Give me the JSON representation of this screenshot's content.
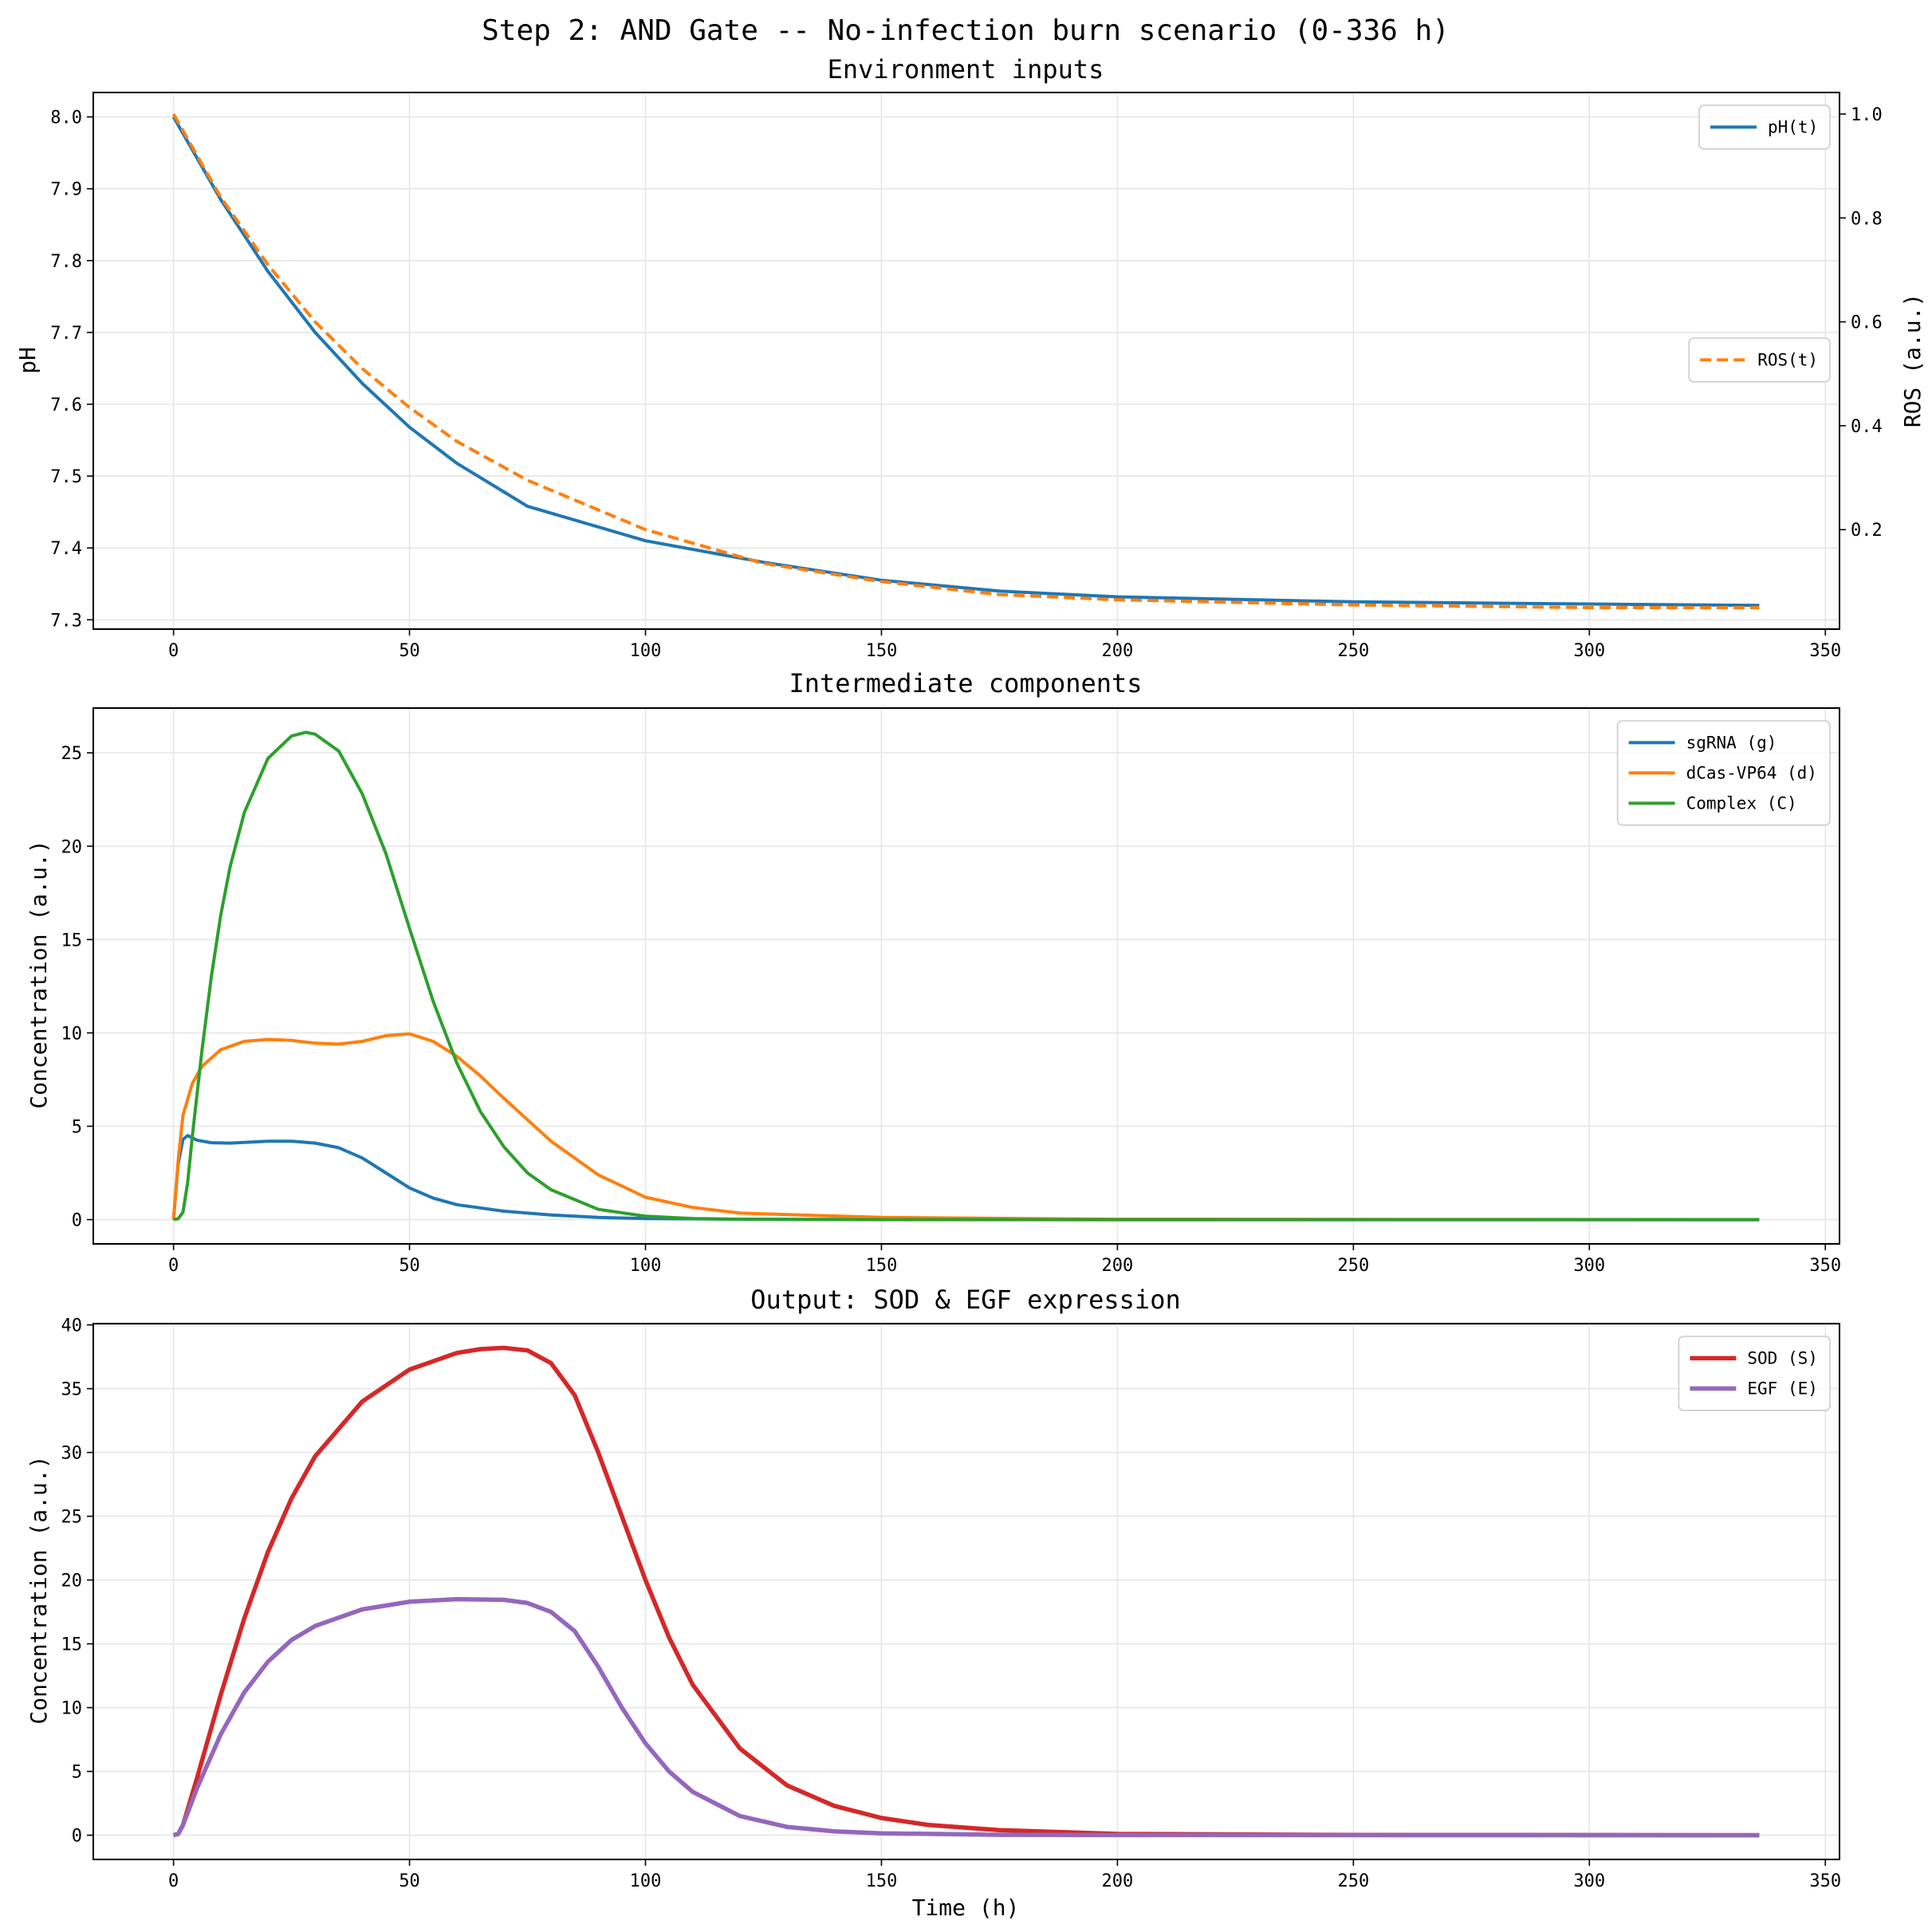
{
  "chart_data": [
    {
      "type": "line",
      "suptitle": "Step 2: AND Gate -- No-infection burn scenario (0-336 h)",
      "title": "Environment inputs",
      "xlabel": "",
      "ylabel": "pH",
      "y2label": "ROS (a.u.)",
      "xlim": [
        -17,
        353
      ],
      "ylim": [
        7.287,
        8.034
      ],
      "y2lim": [
        0.0085,
        1.0415
      ],
      "xticks": [
        0,
        50,
        100,
        150,
        200,
        250,
        300,
        350
      ],
      "yticks": [
        7.3,
        7.4,
        7.5,
        7.6,
        7.7,
        7.8,
        7.9,
        8.0
      ],
      "yticks_fmt": 1,
      "y2ticks": [
        0.2,
        0.4,
        0.6,
        0.8,
        1.0
      ],
      "grid": true,
      "series": [
        {
          "name": "pH(t)",
          "axis": "left",
          "color": "#1f77b4",
          "dash": "",
          "width": 4,
          "legend": "top-right",
          "x": [
            0,
            10,
            20,
            30,
            40,
            50,
            60,
            75,
            100,
            125,
            150,
            175,
            200,
            250,
            300,
            336
          ],
          "y": [
            8.0,
            7.885,
            7.785,
            7.7,
            7.629,
            7.568,
            7.518,
            7.458,
            7.41,
            7.38,
            7.355,
            7.34,
            7.332,
            7.325,
            7.322,
            7.32
          ]
        },
        {
          "name": "ROS(t)",
          "axis": "right",
          "color": "#ff7f0e",
          "dash": "14,7",
          "width": 4,
          "legend": "center-right",
          "x": [
            0,
            10,
            20,
            30,
            40,
            50,
            60,
            75,
            100,
            125,
            150,
            175,
            200,
            250,
            300,
            336
          ],
          "y": [
            1.0,
            0.84,
            0.71,
            0.6,
            0.51,
            0.435,
            0.37,
            0.295,
            0.2,
            0.135,
            0.1,
            0.075,
            0.065,
            0.055,
            0.05,
            0.05
          ]
        }
      ]
    },
    {
      "type": "line",
      "title": "Intermediate components",
      "xlabel": "",
      "ylabel": "Concentration (a.u.)",
      "xlim": [
        -17,
        353
      ],
      "ylim": [
        -1.3,
        27.4
      ],
      "xticks": [
        0,
        50,
        100,
        150,
        200,
        250,
        300,
        350
      ],
      "yticks": [
        0,
        5,
        10,
        15,
        20,
        25
      ],
      "yticks_fmt": 0,
      "grid": true,
      "legend": "top-right",
      "series": [
        {
          "name": "sgRNA (g)",
          "color": "#1f77b4",
          "width": 4,
          "x": [
            0,
            1,
            2,
            3,
            5,
            8,
            12,
            20,
            25,
            30,
            35,
            40,
            45,
            50,
            55,
            60,
            70,
            80,
            90,
            100,
            120,
            150,
            200,
            336
          ],
          "y": [
            0,
            3.0,
            4.3,
            4.5,
            4.25,
            4.12,
            4.1,
            4.2,
            4.2,
            4.1,
            3.85,
            3.3,
            2.5,
            1.7,
            1.15,
            0.8,
            0.45,
            0.25,
            0.12,
            0.06,
            0.02,
            0.01,
            0,
            0
          ]
        },
        {
          "name": "dCas-VP64 (d)",
          "color": "#ff7f0e",
          "width": 4,
          "x": [
            0,
            1,
            2,
            4,
            6,
            10,
            15,
            20,
            25,
            30,
            35,
            40,
            45,
            50,
            55,
            60,
            65,
            70,
            80,
            90,
            100,
            110,
            120,
            150,
            200,
            336
          ],
          "y": [
            0,
            3.2,
            5.6,
            7.3,
            8.2,
            9.1,
            9.55,
            9.65,
            9.6,
            9.45,
            9.4,
            9.55,
            9.85,
            9.95,
            9.55,
            8.75,
            7.7,
            6.5,
            4.2,
            2.4,
            1.2,
            0.65,
            0.35,
            0.12,
            0.02,
            0
          ]
        },
        {
          "name": "Complex (C)",
          "color": "#2ca02c",
          "width": 4,
          "x": [
            0,
            1,
            2,
            3,
            4,
            6,
            8,
            10,
            12,
            15,
            20,
            25,
            28,
            30,
            35,
            40,
            45,
            50,
            55,
            60,
            65,
            70,
            75,
            80,
            90,
            100,
            110,
            120,
            150,
            336
          ],
          "y": [
            0,
            0.05,
            0.4,
            2.0,
            4.5,
            9.0,
            13.0,
            16.3,
            18.9,
            21.8,
            24.7,
            25.9,
            26.1,
            26.0,
            25.1,
            22.8,
            19.6,
            15.6,
            11.7,
            8.4,
            5.8,
            3.9,
            2.5,
            1.6,
            0.55,
            0.18,
            0.06,
            0.02,
            0,
            0
          ]
        }
      ]
    },
    {
      "type": "line",
      "title": "Output: SOD & EGF expression",
      "xlabel": "Time (h)",
      "ylabel": "Concentration (a.u.)",
      "xlim": [
        -17,
        353
      ],
      "ylim": [
        -1.9,
        40.1
      ],
      "xticks": [
        0,
        50,
        100,
        150,
        200,
        250,
        300,
        350
      ],
      "yticks": [
        0,
        5,
        10,
        15,
        20,
        25,
        30,
        35,
        40
      ],
      "yticks_fmt": 0,
      "grid": true,
      "legend": "top-right",
      "series": [
        {
          "name": "SOD (S)",
          "color": "#d62728",
          "width": 5.5,
          "x": [
            0,
            1,
            2,
            5,
            10,
            15,
            20,
            25,
            30,
            40,
            50,
            60,
            65,
            70,
            75,
            80,
            85,
            90,
            95,
            100,
            105,
            110,
            120,
            130,
            140,
            150,
            160,
            175,
            200,
            250,
            336
          ],
          "y": [
            0,
            0.1,
            0.8,
            4.5,
            11.0,
            17.0,
            22.2,
            26.4,
            29.7,
            34.0,
            36.5,
            37.8,
            38.1,
            38.2,
            38.0,
            37.0,
            34.5,
            30.0,
            25.0,
            20.0,
            15.5,
            11.8,
            6.8,
            3.9,
            2.3,
            1.35,
            0.8,
            0.4,
            0.1,
            0.02,
            0
          ]
        },
        {
          "name": "EGF (E)",
          "color": "#9467bd",
          "width": 5.5,
          "x": [
            0,
            1,
            2,
            5,
            10,
            15,
            20,
            25,
            30,
            40,
            50,
            60,
            70,
            75,
            80,
            85,
            90,
            95,
            100,
            105,
            110,
            120,
            130,
            140,
            150,
            175,
            200,
            336
          ],
          "y": [
            0,
            0.1,
            0.8,
            3.7,
            7.9,
            11.2,
            13.6,
            15.3,
            16.4,
            17.7,
            18.3,
            18.5,
            18.45,
            18.2,
            17.5,
            16.0,
            13.2,
            10.0,
            7.2,
            5.0,
            3.4,
            1.5,
            0.65,
            0.3,
            0.15,
            0.03,
            0.01,
            0
          ]
        }
      ]
    }
  ]
}
